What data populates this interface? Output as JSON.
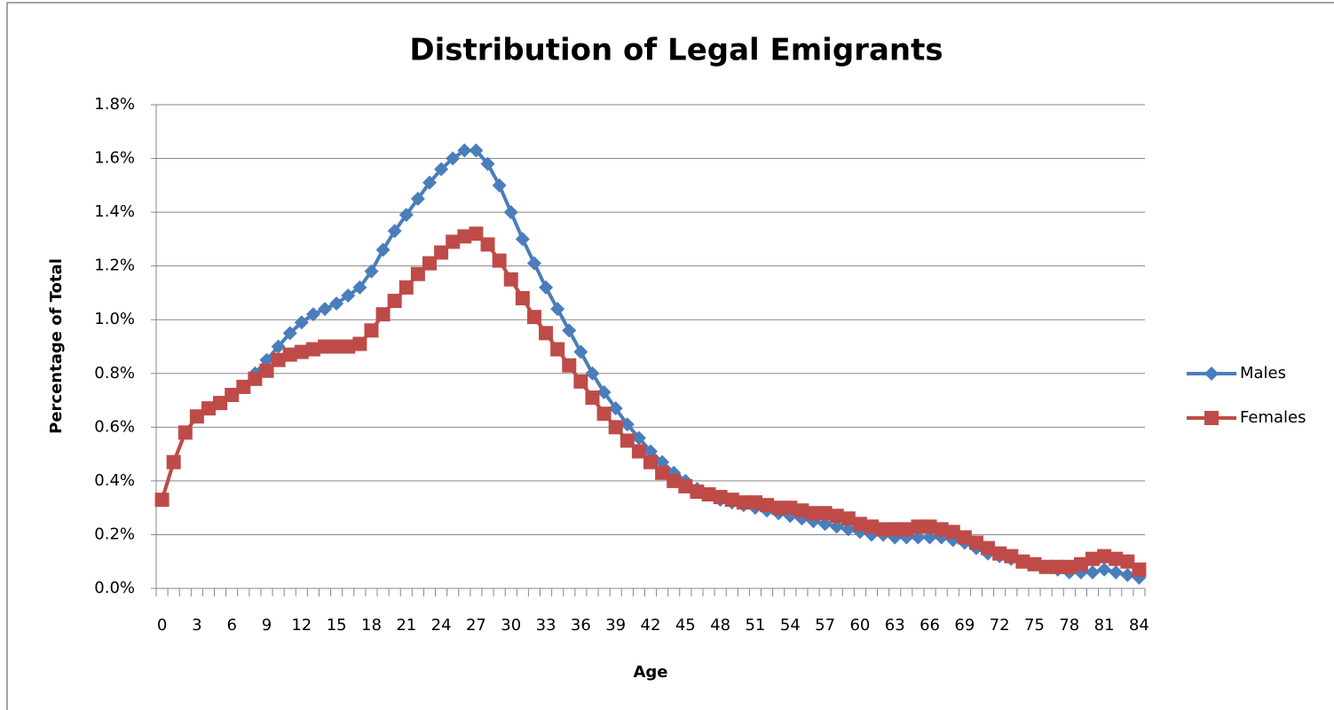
{
  "chart_data": {
    "type": "line",
    "title": "Distribution of Legal Emigrants",
    "x_label": "Age",
    "y_label": "Percentage of Total",
    "categories": [
      "0",
      null,
      null,
      "3",
      null,
      null,
      "6",
      null,
      null,
      "9",
      null,
      null,
      "12",
      null,
      null,
      "15",
      null,
      null,
      "18",
      null,
      null,
      "21",
      null,
      null,
      "24",
      null,
      null,
      "27",
      null,
      null,
      "30",
      null,
      null,
      "33",
      null,
      null,
      "36",
      null,
      null,
      "39",
      null,
      null,
      "42",
      null,
      null,
      "45",
      null,
      null,
      "48",
      null,
      null,
      "51",
      null,
      null,
      "54",
      null,
      null,
      "57",
      null,
      null,
      "60",
      null,
      null,
      "63",
      null,
      null,
      "66",
      null,
      null,
      "69",
      null,
      null,
      "72",
      null,
      null,
      "75",
      null,
      null,
      "78",
      null,
      null,
      "81",
      null,
      null,
      "84"
    ],
    "series": [
      {
        "name": "Males",
        "color": "#4a7ebb",
        "marker": "diamond",
        "values": [
          0.33,
          0.47,
          0.58,
          0.64,
          0.67,
          0.69,
          0.72,
          0.75,
          0.8,
          0.85,
          0.9,
          0.95,
          0.99,
          1.02,
          1.04,
          1.06,
          1.09,
          1.12,
          1.18,
          1.26,
          1.33,
          1.39,
          1.45,
          1.51,
          1.56,
          1.6,
          1.63,
          1.63,
          1.58,
          1.5,
          1.4,
          1.3,
          1.21,
          1.12,
          1.04,
          0.96,
          0.88,
          0.8,
          0.73,
          0.67,
          0.61,
          0.56,
          0.51,
          0.47,
          0.43,
          0.4,
          0.37,
          0.35,
          0.33,
          0.32,
          0.31,
          0.3,
          0.29,
          0.28,
          0.27,
          0.26,
          0.25,
          0.24,
          0.23,
          0.22,
          0.21,
          0.2,
          0.2,
          0.19,
          0.19,
          0.19,
          0.19,
          0.19,
          0.18,
          0.17,
          0.15,
          0.13,
          0.12,
          0.11,
          0.1,
          0.09,
          0.08,
          0.07,
          0.06,
          0.06,
          0.06,
          0.07,
          0.06,
          0.05,
          0.04
        ]
      },
      {
        "name": "Females",
        "color": "#be4b48",
        "marker": "square",
        "values": [
          0.33,
          0.47,
          0.58,
          0.64,
          0.67,
          0.69,
          0.72,
          0.75,
          0.78,
          0.81,
          0.85,
          0.87,
          0.88,
          0.89,
          0.9,
          0.9,
          0.9,
          0.91,
          0.96,
          1.02,
          1.07,
          1.12,
          1.17,
          1.21,
          1.25,
          1.29,
          1.31,
          1.32,
          1.28,
          1.22,
          1.15,
          1.08,
          1.01,
          0.95,
          0.89,
          0.83,
          0.77,
          0.71,
          0.65,
          0.6,
          0.55,
          0.51,
          0.47,
          0.43,
          0.4,
          0.38,
          0.36,
          0.35,
          0.34,
          0.33,
          0.32,
          0.32,
          0.31,
          0.3,
          0.3,
          0.29,
          0.28,
          0.28,
          0.27,
          0.26,
          0.24,
          0.23,
          0.22,
          0.22,
          0.22,
          0.23,
          0.23,
          0.22,
          0.21,
          0.19,
          0.17,
          0.15,
          0.13,
          0.12,
          0.1,
          0.09,
          0.08,
          0.08,
          0.08,
          0.09,
          0.11,
          0.12,
          0.11,
          0.1,
          0.07
        ]
      }
    ],
    "ylim": [
      0,
      1.8
    ],
    "yticks": [
      {
        "value": 0,
        "label": "0.0%"
      },
      {
        "value": 0.2,
        "label": "0.2%"
      },
      {
        "value": 0.4,
        "label": "0.4%"
      },
      {
        "value": 0.6,
        "label": "0.6%"
      },
      {
        "value": 0.8,
        "label": "0.8%"
      },
      {
        "value": 1.0,
        "label": "1.0%"
      },
      {
        "value": 1.2,
        "label": "1.2%"
      },
      {
        "value": 1.4,
        "label": "1.4%"
      },
      {
        "value": 1.6,
        "label": "1.6%"
      },
      {
        "value": 1.8,
        "label": "1.8%"
      }
    ],
    "grid": true,
    "legend": "right"
  }
}
